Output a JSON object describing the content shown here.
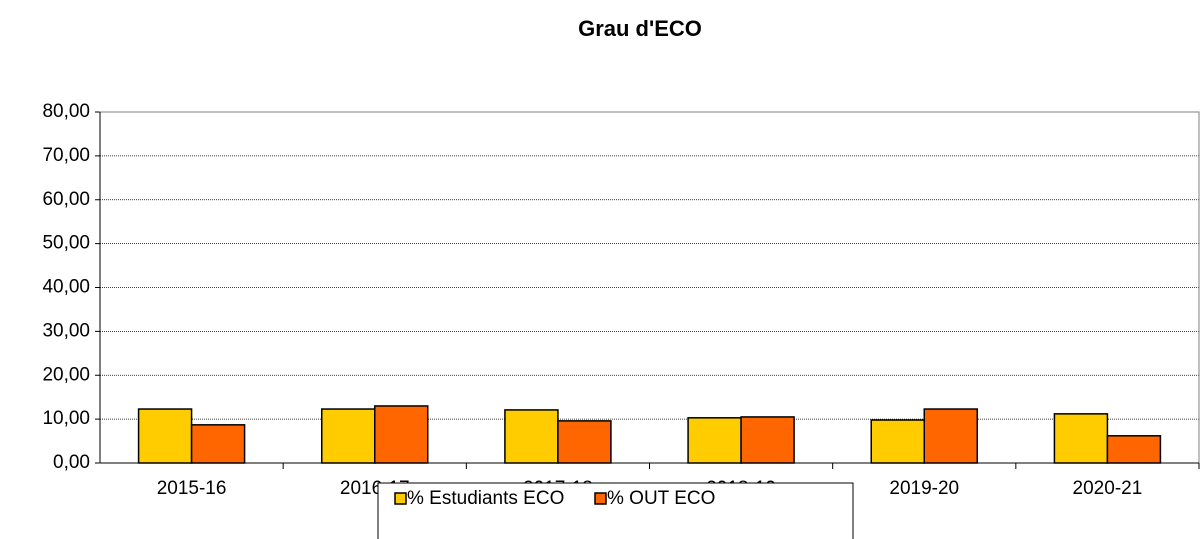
{
  "chart_data": {
    "type": "bar",
    "title": "Grau d'ECO",
    "categories": [
      "2015-16",
      "2016-17",
      "2017-18",
      "2018-19",
      "2019-20",
      "2020-21"
    ],
    "series": [
      {
        "name": "% Estudiants ECO",
        "color": "#ffcc00",
        "values": [
          12.3,
          12.3,
          12.1,
          10.3,
          9.8,
          11.2
        ]
      },
      {
        "name": "% OUT ECO",
        "color": "#ff6600",
        "values": [
          8.7,
          13.0,
          9.6,
          10.5,
          12.3,
          6.2
        ]
      }
    ],
    "ylim": [
      0,
      80
    ],
    "yticks": [
      {
        "value": 0,
        "label": "0,00"
      },
      {
        "value": 10,
        "label": "10,00"
      },
      {
        "value": 20,
        "label": "20,00"
      },
      {
        "value": 30,
        "label": "30,00"
      },
      {
        "value": 40,
        "label": "40,00"
      },
      {
        "value": 50,
        "label": "50,00"
      },
      {
        "value": 60,
        "label": "60,00"
      },
      {
        "value": 70,
        "label": "70,00"
      },
      {
        "value": 80,
        "label": "80,00"
      }
    ],
    "grid": true,
    "legend": "bottom"
  }
}
